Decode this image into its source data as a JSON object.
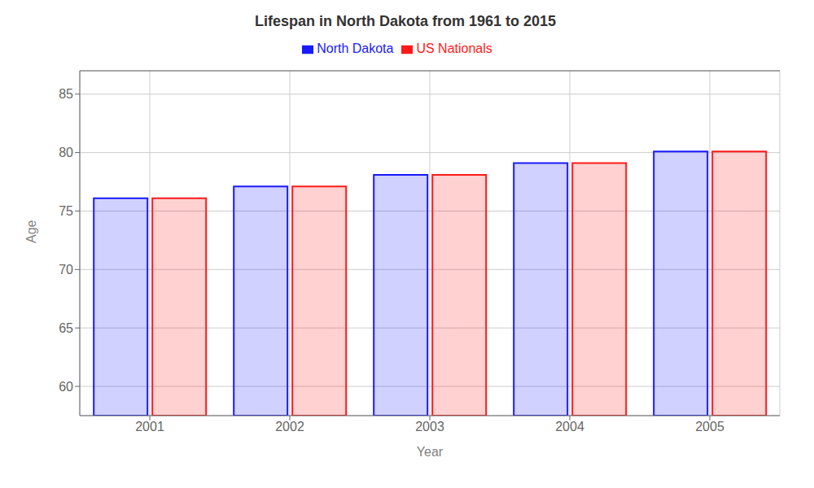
{
  "chart_data": {
    "type": "bar",
    "title": "Lifespan in North Dakota from 1961 to 2015",
    "x_label": "Year",
    "y_label": "Age",
    "categories": [
      "2001",
      "2002",
      "2003",
      "2004",
      "2005"
    ],
    "series": [
      {
        "name": "North Dakota",
        "color": "#1a1aff",
        "values": [
          76.1,
          77.1,
          78.1,
          79.1,
          80.1
        ]
      },
      {
        "name": "US Nationals",
        "color": "#ff1a1a",
        "values": [
          76.1,
          77.1,
          78.1,
          79.1,
          80.1
        ]
      }
    ],
    "ylim": [
      57.5,
      87
    ],
    "yticks": [
      60,
      65,
      70,
      75,
      80,
      85
    ],
    "grid": true,
    "legend": "top"
  }
}
